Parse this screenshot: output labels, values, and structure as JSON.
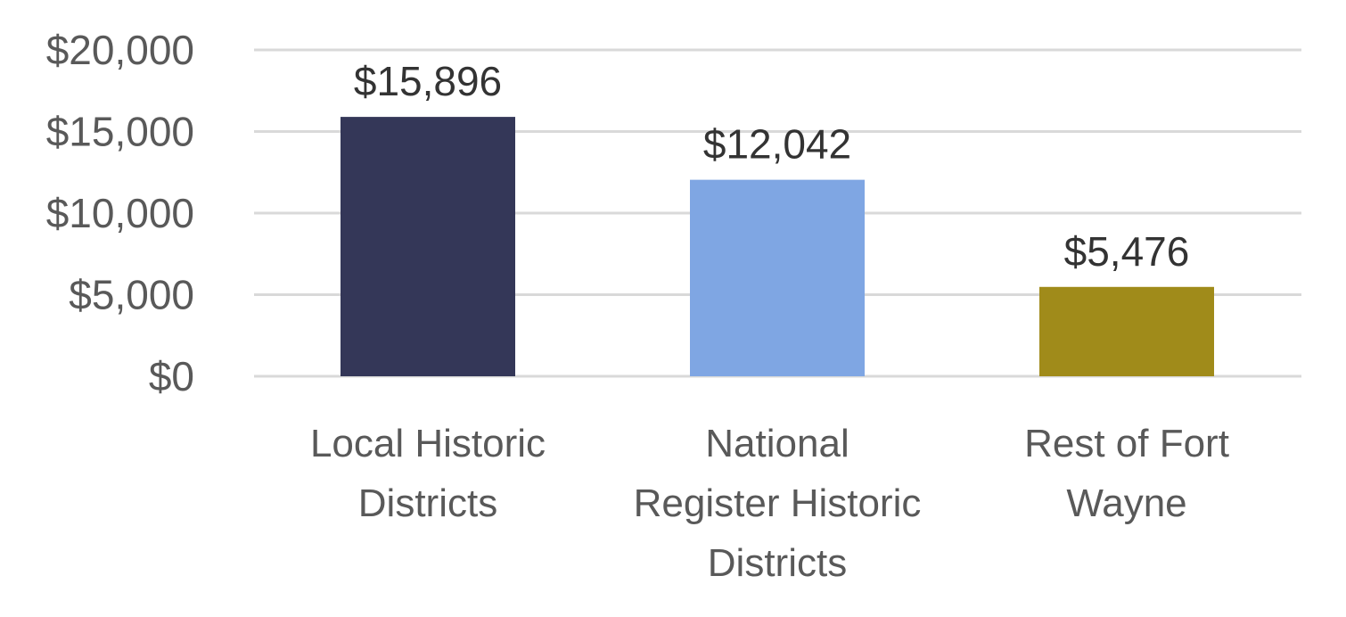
{
  "chart_data": {
    "type": "bar",
    "title": "",
    "xlabel": "",
    "ylabel": "",
    "categories": [
      [
        "Local Historic",
        "Districts"
      ],
      [
        "National",
        "Register Historic",
        "Districts"
      ],
      [
        "Rest of Fort",
        "Wayne"
      ]
    ],
    "values": [
      15896,
      12042,
      5476
    ],
    "data_labels": [
      "$15,896",
      "$12,042",
      "$5,476"
    ],
    "colors": [
      "#343758",
      "#7fa6e3",
      "#a08b1a"
    ],
    "ylim": [
      0,
      20000
    ],
    "yticks": [
      0,
      5000,
      10000,
      15000,
      20000
    ],
    "ytick_labels": [
      "$0",
      "$5,000",
      "$10,000",
      "$15,000",
      "$20,000"
    ],
    "grid": true,
    "legend": "none"
  }
}
